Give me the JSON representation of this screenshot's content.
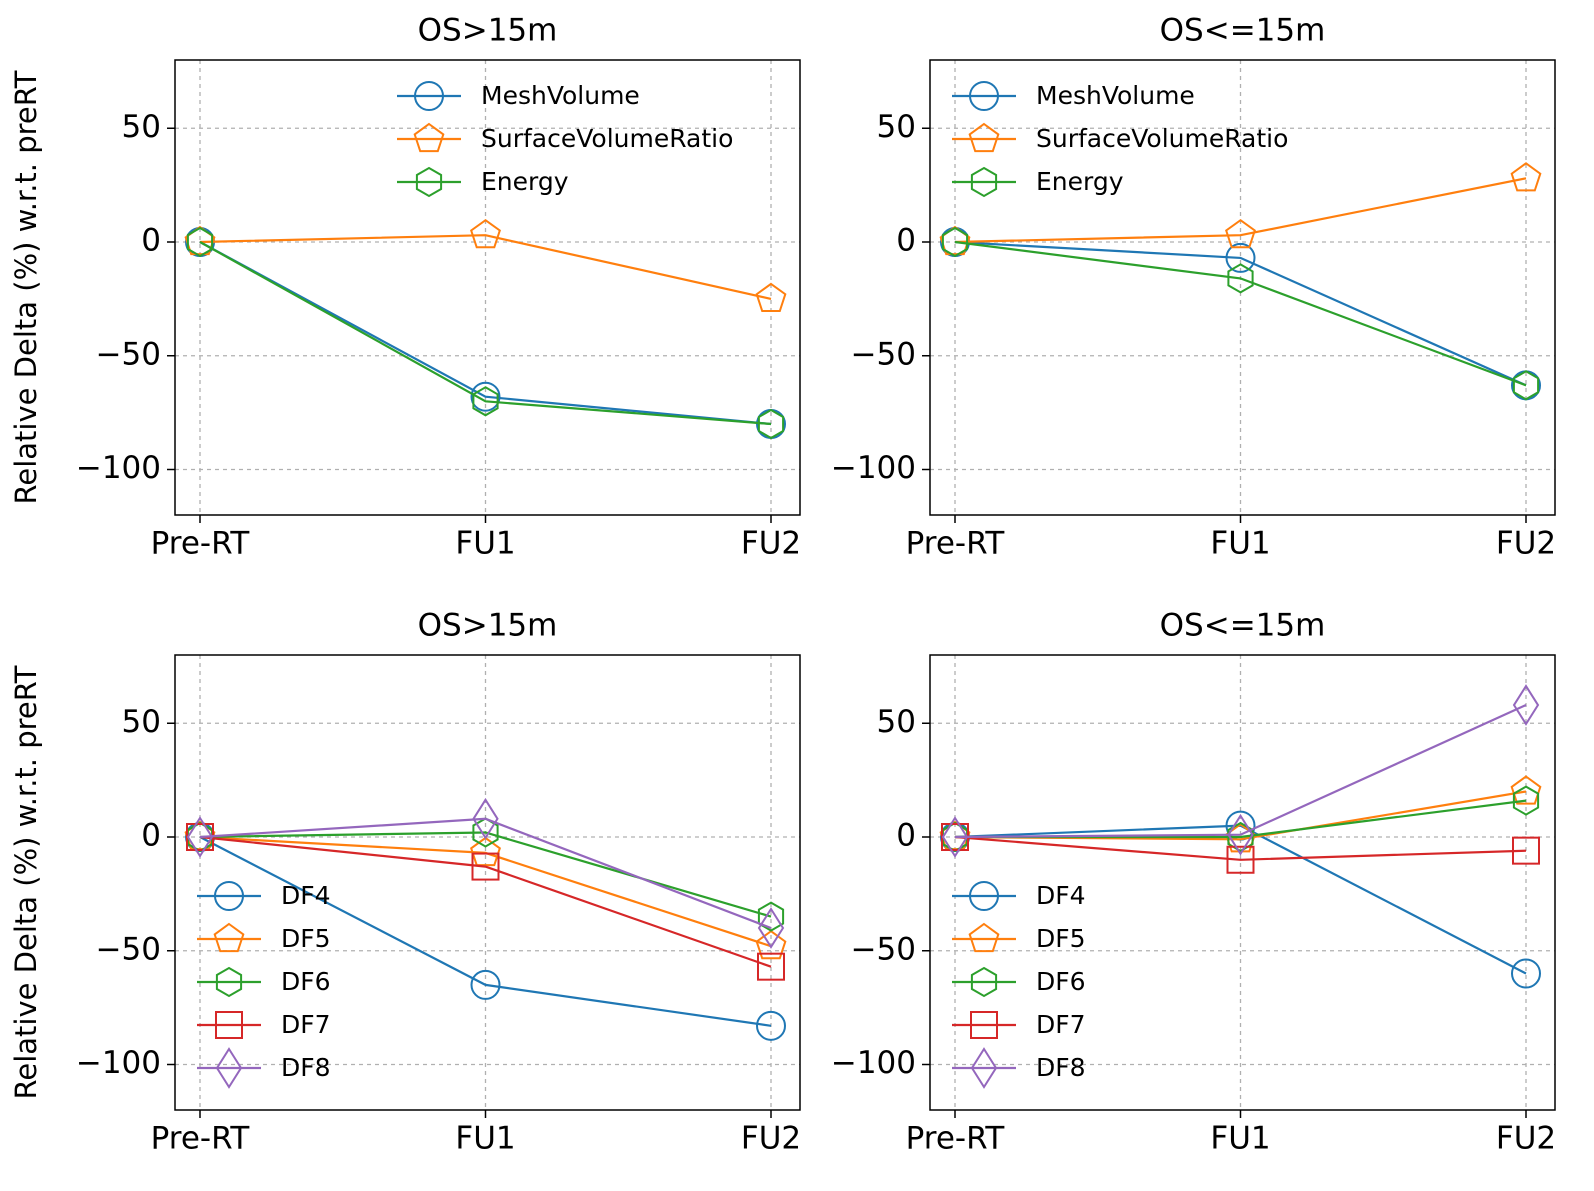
{
  "chart_data": [
    {
      "type": "line",
      "title": "OS>15m",
      "ylabel": "Relative Delta (%) w.r.t. preRT",
      "categories": [
        "Pre-RT",
        "FU1",
        "FU2"
      ],
      "series": [
        {
          "name": "MeshVolume",
          "color": "#1f77b4",
          "marker": "circle",
          "values": [
            0,
            -68,
            -80
          ]
        },
        {
          "name": "SurfaceVolumeRatio",
          "color": "#ff7f0e",
          "marker": "pentagon",
          "values": [
            0,
            3,
            -25
          ]
        },
        {
          "name": "Energy",
          "color": "#2ca02c",
          "marker": "hexagon",
          "values": [
            0,
            -70,
            -80
          ]
        }
      ],
      "ylim": [
        -120,
        80
      ],
      "yticks": [
        {
          "value": -100,
          "label": "−100"
        },
        {
          "value": -50,
          "label": "−50"
        },
        0,
        50
      ],
      "grid": true,
      "legend": "upper center"
    },
    {
      "type": "line",
      "title": "OS<=15m",
      "categories": [
        "Pre-RT",
        "FU1",
        "FU2"
      ],
      "series": [
        {
          "name": "MeshVolume",
          "color": "#1f77b4",
          "marker": "circle",
          "values": [
            0,
            -7,
            -63
          ]
        },
        {
          "name": "SurfaceVolumeRatio",
          "color": "#ff7f0e",
          "marker": "pentagon",
          "values": [
            0,
            3,
            28
          ]
        },
        {
          "name": "Energy",
          "color": "#2ca02c",
          "marker": "hexagon",
          "values": [
            0,
            -16,
            -63
          ]
        }
      ],
      "ylim": [
        -120,
        80
      ],
      "yticks": [
        {
          "value": -100,
          "label": "−100"
        },
        {
          "value": -50,
          "label": "−50"
        },
        0,
        50
      ],
      "grid": true,
      "legend": "upper left"
    },
    {
      "type": "line",
      "title": "OS>15m",
      "ylabel": "Relative Delta (%) w.r.t. preRT",
      "categories": [
        "Pre-RT",
        "FU1",
        "FU2"
      ],
      "series": [
        {
          "name": "DF4",
          "color": "#1f77b4",
          "marker": "circle",
          "values": [
            0,
            -65,
            -83
          ]
        },
        {
          "name": "DF5",
          "color": "#ff7f0e",
          "marker": "pentagon",
          "values": [
            0,
            -7,
            -48
          ]
        },
        {
          "name": "DF6",
          "color": "#2ca02c",
          "marker": "hexagon",
          "values": [
            0,
            2,
            -35
          ]
        },
        {
          "name": "DF7",
          "color": "#d62728",
          "marker": "square",
          "values": [
            0,
            -13,
            -57
          ]
        },
        {
          "name": "DF8",
          "color": "#9467bd",
          "marker": "diamond",
          "values": [
            0,
            8,
            -40
          ]
        }
      ],
      "ylim": [
        -120,
        80
      ],
      "yticks": [
        {
          "value": -100,
          "label": "−100"
        },
        {
          "value": -50,
          "label": "−50"
        },
        0,
        50
      ],
      "grid": true,
      "legend": "lower left"
    },
    {
      "type": "line",
      "title": "OS<=15m",
      "categories": [
        "Pre-RT",
        "FU1",
        "FU2"
      ],
      "series": [
        {
          "name": "DF4",
          "color": "#1f77b4",
          "marker": "circle",
          "values": [
            0,
            5,
            -60
          ]
        },
        {
          "name": "DF5",
          "color": "#ff7f0e",
          "marker": "pentagon",
          "values": [
            0,
            -1,
            20
          ]
        },
        {
          "name": "DF6",
          "color": "#2ca02c",
          "marker": "hexagon",
          "values": [
            0,
            0,
            16
          ]
        },
        {
          "name": "DF7",
          "color": "#d62728",
          "marker": "square",
          "values": [
            0,
            -10,
            -6
          ]
        },
        {
          "name": "DF8",
          "color": "#9467bd",
          "marker": "diamond",
          "values": [
            0,
            1,
            58
          ]
        }
      ],
      "ylim": [
        -120,
        80
      ],
      "yticks": [
        {
          "value": -100,
          "label": "−100"
        },
        {
          "value": -50,
          "label": "−50"
        },
        0,
        50
      ],
      "grid": true,
      "legend": "lower left"
    }
  ]
}
